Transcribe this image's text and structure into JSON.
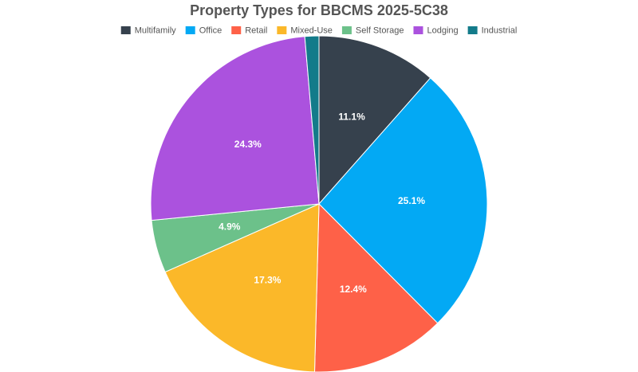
{
  "chart_data": {
    "type": "pie",
    "title": "Property Types for BBCMS 2025-5C38",
    "categories": [
      "Multifamily",
      "Office",
      "Retail",
      "Mixed-Use",
      "Self Storage",
      "Lodging",
      "Industrial"
    ],
    "values": [
      11.1,
      25.1,
      12.4,
      17.3,
      4.9,
      24.3,
      1.3
    ],
    "value_labels": [
      "11.1%",
      "25.1%",
      "12.4%",
      "17.3%",
      "4.9%",
      "24.3%",
      null
    ],
    "colors": [
      "#36414d",
      "#03a9f4",
      "#fe6148",
      "#fbb829",
      "#6cc18a",
      "#ab52de",
      "#137b8a"
    ],
    "legend": "top"
  }
}
